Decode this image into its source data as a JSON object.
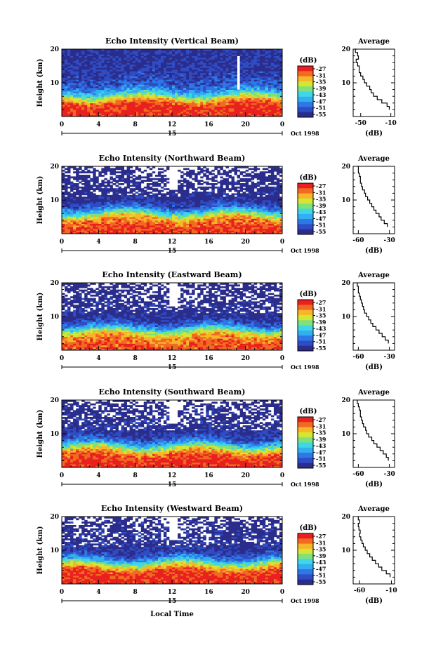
{
  "figure": {
    "xlabel": "Local Time",
    "date_label": "Oct 1998",
    "day_label": "15",
    "colorbar_unit": "(dB)",
    "average_title": "Average",
    "average_xlabel": "(dB)",
    "ylabel": "Height (km)"
  },
  "colors": {
    "colormap": [
      "#2b2d8c",
      "#2f4cc4",
      "#2d78e6",
      "#33aef0",
      "#3fd6e8",
      "#7fe07c",
      "#d4e634",
      "#f7b52a",
      "#f26a21",
      "#e8211f"
    ],
    "nodata": "#ffffff"
  },
  "chart_data": [
    {
      "type": "heatmap",
      "title": "Echo Intensity (Vertical Beam)",
      "xlabel": "Local Time",
      "ylabel": "Height (km)",
      "xlim": [
        0,
        24
      ],
      "ylim": [
        0,
        20
      ],
      "xticks": [
        "0",
        "4",
        "8",
        "12",
        "16",
        "20",
        "0"
      ],
      "yticks": [
        "10",
        "20"
      ],
      "colorbar": {
        "unit": "(dB)",
        "ticks": [
          "-27",
          "-31",
          "-35",
          "-39",
          "-43",
          "-47",
          "-51",
          "-55"
        ],
        "range": [
          -56,
          -26
        ]
      },
      "profile": {
        "title": "Average",
        "xlabel": "(dB)",
        "xticks": [
          "-50",
          "-10"
        ],
        "xlim": [
          -60,
          -5
        ],
        "yticks": [
          "10",
          "20"
        ],
        "points": [
          [
            2,
            -12
          ],
          [
            3,
            -15
          ],
          [
            4,
            -22
          ],
          [
            5,
            -28
          ],
          [
            6,
            -33
          ],
          [
            7,
            -36
          ],
          [
            8,
            -38
          ],
          [
            9,
            -42
          ],
          [
            10,
            -45
          ],
          [
            11,
            -47
          ],
          [
            12,
            -50
          ],
          [
            13,
            -52
          ],
          [
            14,
            -52
          ],
          [
            15,
            -54
          ],
          [
            16,
            -56
          ],
          [
            17,
            -53
          ],
          [
            18,
            -54
          ],
          [
            19,
            -57
          ],
          [
            20,
            -55
          ]
        ]
      },
      "data_profile": [
        [
          2,
          -26
        ],
        [
          4,
          -28
        ],
        [
          5,
          -33
        ],
        [
          6,
          -39
        ],
        [
          7,
          -44
        ],
        [
          8,
          -48
        ],
        [
          9,
          -51
        ],
        [
          10,
          -52
        ],
        [
          12,
          -54
        ],
        [
          15,
          -55
        ],
        [
          18,
          -55
        ],
        [
          20,
          -56
        ]
      ]
    },
    {
      "type": "heatmap",
      "title": "Echo Intensity (Northward Beam)",
      "xlabel": "Local Time",
      "ylabel": "Height (km)",
      "xlim": [
        0,
        24
      ],
      "ylim": [
        0,
        20
      ],
      "xticks": [
        "0",
        "4",
        "8",
        "12",
        "16",
        "20",
        "0"
      ],
      "yticks": [
        "10",
        "20"
      ],
      "colorbar": {
        "unit": "(dB)",
        "ticks": [
          "-27",
          "-31",
          "-35",
          "-39",
          "-43",
          "-47",
          "-51",
          "-55"
        ],
        "range": [
          -56,
          -26
        ]
      },
      "profile": {
        "title": "Average",
        "xlabel": "(dB)",
        "xticks": [
          "-60",
          "-30"
        ],
        "xlim": [
          -65,
          -25
        ],
        "yticks": [
          "10",
          "20"
        ],
        "points": [
          [
            2,
            -32
          ],
          [
            3,
            -35
          ],
          [
            4,
            -38
          ],
          [
            5,
            -40
          ],
          [
            6,
            -43
          ],
          [
            7,
            -45
          ],
          [
            8,
            -47
          ],
          [
            9,
            -49
          ],
          [
            10,
            -51
          ],
          [
            11,
            -53
          ],
          [
            12,
            -54
          ],
          [
            13,
            -56
          ],
          [
            14,
            -57
          ],
          [
            15,
            -58
          ],
          [
            16,
            -58
          ],
          [
            17,
            -59
          ],
          [
            18,
            -60
          ],
          [
            19,
            -60
          ],
          [
            20,
            -61
          ]
        ]
      },
      "data_profile": [
        [
          2,
          -27
        ],
        [
          4,
          -30
        ],
        [
          5,
          -34
        ],
        [
          6,
          -40
        ],
        [
          7,
          -46
        ],
        [
          8,
          -51
        ],
        [
          9,
          -54
        ],
        [
          10,
          -55
        ],
        [
          11,
          -57
        ],
        [
          20,
          -58
        ]
      ]
    },
    {
      "type": "heatmap",
      "title": "Echo Intensity (Eastward Beam)",
      "xlabel": "Local Time",
      "ylabel": "Height (km)",
      "xlim": [
        0,
        24
      ],
      "ylim": [
        0,
        20
      ],
      "xticks": [
        "0",
        "4",
        "8",
        "12",
        "16",
        "20",
        "0"
      ],
      "yticks": [
        "10",
        "20"
      ],
      "colorbar": {
        "unit": "(dB)",
        "ticks": [
          "-27",
          "-31",
          "-35",
          "-39",
          "-43",
          "-47",
          "-51",
          "-55"
        ],
        "range": [
          -56,
          -26
        ]
      },
      "profile": {
        "title": "Average",
        "xlabel": "(dB)",
        "xticks": [
          "-60",
          "-30"
        ],
        "xlim": [
          -65,
          -25
        ],
        "yticks": [
          "10",
          "20"
        ],
        "points": [
          [
            2,
            -31
          ],
          [
            3,
            -34
          ],
          [
            4,
            -37
          ],
          [
            5,
            -40
          ],
          [
            6,
            -43
          ],
          [
            7,
            -46
          ],
          [
            8,
            -48
          ],
          [
            9,
            -50
          ],
          [
            10,
            -52
          ],
          [
            11,
            -54
          ],
          [
            12,
            -55
          ],
          [
            13,
            -56
          ],
          [
            14,
            -57
          ],
          [
            15,
            -58
          ],
          [
            16,
            -59
          ],
          [
            17,
            -60
          ],
          [
            18,
            -60
          ],
          [
            19,
            -61
          ],
          [
            20,
            -61
          ]
        ]
      },
      "data_profile": [
        [
          2,
          -28
        ],
        [
          4,
          -31
        ],
        [
          5,
          -35
        ],
        [
          6,
          -41
        ],
        [
          7,
          -47
        ],
        [
          8,
          -52
        ],
        [
          9,
          -54
        ],
        [
          10,
          -56
        ],
        [
          20,
          -58
        ]
      ]
    },
    {
      "type": "heatmap",
      "title": "Echo Intensity (Southward Beam)",
      "xlabel": "Local Time",
      "ylabel": "Height (km)",
      "xlim": [
        0,
        24
      ],
      "ylim": [
        0,
        20
      ],
      "xticks": [
        "0",
        "4",
        "8",
        "12",
        "16",
        "20",
        "0"
      ],
      "yticks": [
        "10",
        "20"
      ],
      "colorbar": {
        "unit": "(dB)",
        "ticks": [
          "-27",
          "-31",
          "-35",
          "-39",
          "-43",
          "-47",
          "-51",
          "-55"
        ],
        "range": [
          -56,
          -26
        ]
      },
      "profile": {
        "title": "Average",
        "xlabel": "(dB)",
        "xticks": [
          "-60",
          "-30"
        ],
        "xlim": [
          -65,
          -25
        ],
        "yticks": [
          "10",
          "20"
        ],
        "points": [
          [
            2,
            -31
          ],
          [
            3,
            -33
          ],
          [
            4,
            -36
          ],
          [
            5,
            -39
          ],
          [
            6,
            -42
          ],
          [
            7,
            -45
          ],
          [
            8,
            -47
          ],
          [
            9,
            -50
          ],
          [
            10,
            -52
          ],
          [
            11,
            -53
          ],
          [
            12,
            -55
          ],
          [
            13,
            -56
          ],
          [
            14,
            -57
          ],
          [
            15,
            -58
          ],
          [
            16,
            -58
          ],
          [
            17,
            -59
          ],
          [
            18,
            -60
          ],
          [
            19,
            -61
          ],
          [
            20,
            -61
          ]
        ]
      },
      "data_profile": [
        [
          2,
          -26
        ],
        [
          4,
          -29
        ],
        [
          5,
          -33
        ],
        [
          6,
          -39
        ],
        [
          7,
          -45
        ],
        [
          8,
          -50
        ],
        [
          9,
          -53
        ],
        [
          10,
          -55
        ],
        [
          12,
          -56
        ],
        [
          20,
          -58
        ]
      ]
    },
    {
      "type": "heatmap",
      "title": "Echo Intensity (Westward Beam)",
      "xlabel": "Local Time",
      "ylabel": "Height (km)",
      "xlim": [
        0,
        24
      ],
      "ylim": [
        0,
        20
      ],
      "xticks": [
        "0",
        "4",
        "8",
        "12",
        "16",
        "20",
        "0"
      ],
      "yticks": [
        "10",
        "20"
      ],
      "colorbar": {
        "unit": "(dB)",
        "ticks": [
          "-27",
          "-31",
          "-35",
          "-39",
          "-43",
          "-47",
          "-51",
          "-55"
        ],
        "range": [
          -56,
          -26
        ]
      },
      "profile": {
        "title": "Average",
        "xlabel": "(dB)",
        "xticks": [
          "-60",
          "-10"
        ],
        "xlim": [
          -70,
          -5
        ],
        "yticks": [
          "10",
          "20"
        ],
        "points": [
          [
            2,
            -12
          ],
          [
            3,
            -18
          ],
          [
            4,
            -25
          ],
          [
            5,
            -30
          ],
          [
            6,
            -35
          ],
          [
            7,
            -40
          ],
          [
            8,
            -44
          ],
          [
            9,
            -48
          ],
          [
            10,
            -51
          ],
          [
            11,
            -54
          ],
          [
            12,
            -56
          ],
          [
            13,
            -58
          ],
          [
            14,
            -60
          ],
          [
            15,
            -59
          ],
          [
            16,
            -61
          ],
          [
            17,
            -62
          ],
          [
            18,
            -60
          ],
          [
            19,
            -62
          ],
          [
            20,
            -63
          ]
        ]
      },
      "data_profile": [
        [
          2,
          -26
        ],
        [
          4,
          -28
        ],
        [
          5,
          -33
        ],
        [
          6,
          -39
        ],
        [
          7,
          -45
        ],
        [
          8,
          -50
        ],
        [
          9,
          -53
        ],
        [
          10,
          -55
        ],
        [
          12,
          -56
        ],
        [
          20,
          -58
        ]
      ]
    }
  ]
}
